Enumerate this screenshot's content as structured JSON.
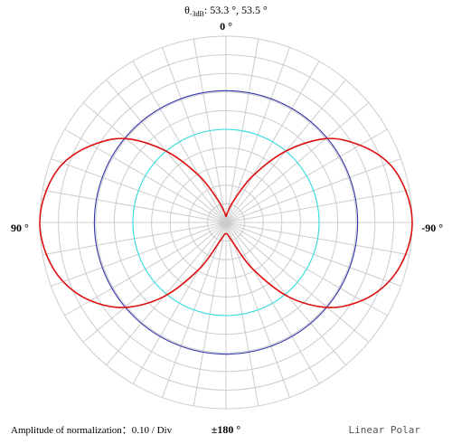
{
  "chart_data": {
    "type": "polar-line",
    "title": {
      "theta_symbol": "θ",
      "theta_subscript": "-3dB",
      "values_text": "53.3 °, 53.5 °"
    },
    "angle_labels": {
      "top": "0 °",
      "left": "90 °",
      "right": "-90 °",
      "bottom": "±180 °"
    },
    "amplitude_label": "Amplitude of normalization：0.10 / Div",
    "scale_label": "Linear Polar",
    "radial_scale": {
      "min": 0,
      "max": 1.0,
      "step": 0.1
    },
    "angular_grid_step_deg": 10,
    "reference_circles": [
      {
        "r": 0.5,
        "color": "#33e0e0"
      },
      {
        "r": 0.707,
        "color": "#3333aa"
      }
    ],
    "pattern": {
      "color": "#dd1111",
      "points": [
        {
          "theta": 0,
          "r": 0.03
        },
        {
          "theta": 10,
          "r": 0.06
        },
        {
          "theta": 20,
          "r": 0.13
        },
        {
          "theta": 30,
          "r": 0.29
        },
        {
          "theta": 40,
          "r": 0.5
        },
        {
          "theta": 50,
          "r": 0.7
        },
        {
          "theta": 60,
          "r": 0.83
        },
        {
          "theta": 70,
          "r": 0.93
        },
        {
          "theta": 80,
          "r": 0.98
        },
        {
          "theta": 90,
          "r": 1.0
        },
        {
          "theta": 100,
          "r": 0.98
        },
        {
          "theta": 110,
          "r": 0.93
        },
        {
          "theta": 120,
          "r": 0.84
        },
        {
          "theta": 130,
          "r": 0.71
        },
        {
          "theta": 140,
          "r": 0.52
        },
        {
          "theta": 150,
          "r": 0.29
        },
        {
          "theta": 160,
          "r": 0.12
        },
        {
          "theta": 170,
          "r": 0.07
        },
        {
          "theta": 180,
          "r": 0.06
        },
        {
          "theta": 190,
          "r": 0.07
        },
        {
          "theta": 200,
          "r": 0.12
        },
        {
          "theta": 210,
          "r": 0.29
        },
        {
          "theta": 220,
          "r": 0.52
        },
        {
          "theta": 230,
          "r": 0.71
        },
        {
          "theta": 240,
          "r": 0.84
        },
        {
          "theta": 250,
          "r": 0.93
        },
        {
          "theta": 260,
          "r": 0.98
        },
        {
          "theta": 270,
          "r": 1.0
        },
        {
          "theta": 280,
          "r": 0.98
        },
        {
          "theta": 290,
          "r": 0.93
        },
        {
          "theta": 300,
          "r": 0.83
        },
        {
          "theta": 310,
          "r": 0.7
        },
        {
          "theta": 320,
          "r": 0.5
        },
        {
          "theta": 330,
          "r": 0.29
        },
        {
          "theta": 340,
          "r": 0.13
        },
        {
          "theta": 350,
          "r": 0.06
        },
        {
          "theta": 360,
          "r": 0.03
        }
      ]
    },
    "grid_color": "#cccccc",
    "background": "#ffffff"
  }
}
